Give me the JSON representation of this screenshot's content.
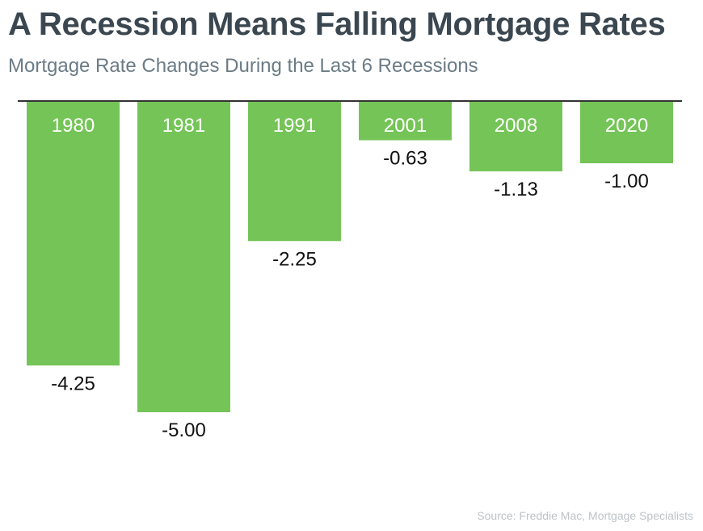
{
  "header": {
    "title": "A Recession Means Falling Mortgage Rates",
    "subtitle": "Mortgage Rate Changes During the Last 6 Recessions"
  },
  "footer": {
    "source": "Source: Freddie Mac, Mortgage Specialists"
  },
  "colors": {
    "bar": "#75c457",
    "axis": "#333333",
    "title": "#3b4750",
    "subtitle": "#6b7b86"
  },
  "chart_data": {
    "type": "bar",
    "title": "A Recession Means Falling Mortgage Rates",
    "subtitle": "Mortgage Rate Changes During the Last 6 Recessions",
    "categories": [
      "1980",
      "1981",
      "1991",
      "2001",
      "2008",
      "2020"
    ],
    "values": [
      -4.25,
      -5.0,
      -2.25,
      -0.63,
      -1.13,
      -1.0
    ],
    "value_labels": [
      "-4.25",
      "-5.00",
      "-2.25",
      "-0.63",
      "-1.13",
      "-1.00"
    ],
    "ylim": [
      -5.0,
      0
    ],
    "grid": false,
    "legend": "none"
  }
}
